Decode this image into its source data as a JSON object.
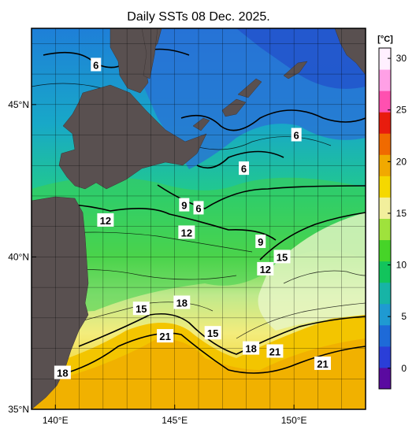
{
  "title": "Daily SSTs 08 Dec. 2025.",
  "map": {
    "lon_range": [
      139,
      153
    ],
    "lat_range": [
      35,
      47.5
    ],
    "lon_ticks": [
      {
        "value": 140,
        "label": "140°E"
      },
      {
        "value": 145,
        "label": "145°E"
      },
      {
        "value": 150,
        "label": "150°E"
      }
    ],
    "lat_ticks": [
      {
        "value": 35,
        "label": "35°N"
      },
      {
        "value": 40,
        "label": "40°N"
      },
      {
        "value": 45,
        "label": "45°N"
      }
    ],
    "land_color": "#595050",
    "contour_labels": [
      {
        "text": "6",
        "lon": 141.7,
        "lat": 46.3
      },
      {
        "text": "6",
        "lon": 150.1,
        "lat": 44.0
      },
      {
        "text": "6",
        "lon": 147.9,
        "lat": 42.9
      },
      {
        "text": "9",
        "lon": 145.4,
        "lat": 41.7
      },
      {
        "text": "6",
        "lon": 146.0,
        "lat": 41.6
      },
      {
        "text": "12",
        "lon": 142.1,
        "lat": 41.2
      },
      {
        "text": "12",
        "lon": 145.5,
        "lat": 40.8
      },
      {
        "text": "9",
        "lon": 148.6,
        "lat": 40.5
      },
      {
        "text": "15",
        "lon": 149.5,
        "lat": 40.0
      },
      {
        "text": "12",
        "lon": 148.8,
        "lat": 39.6
      },
      {
        "text": "18",
        "lon": 145.3,
        "lat": 38.5
      },
      {
        "text": "15",
        "lon": 143.6,
        "lat": 38.3
      },
      {
        "text": "21",
        "lon": 144.6,
        "lat": 37.4
      },
      {
        "text": "15",
        "lon": 146.6,
        "lat": 37.5
      },
      {
        "text": "18",
        "lon": 148.2,
        "lat": 37.0
      },
      {
        "text": "21",
        "lon": 149.2,
        "lat": 36.9
      },
      {
        "text": "21",
        "lon": 151.2,
        "lat": 36.5
      },
      {
        "text": "18",
        "lon": 140.3,
        "lat": 36.2
      }
    ]
  },
  "colorbar": {
    "unit": "[°C]",
    "min": -2,
    "max": 31,
    "ticks": [
      0,
      5,
      10,
      15,
      20,
      25,
      30
    ],
    "colors": [
      "#5a0aa0",
      "#2a3ed8",
      "#1e6ad8",
      "#1f9ad2",
      "#17b4a6",
      "#12c45c",
      "#46d428",
      "#9fe23c",
      "#f2ef9c",
      "#f5d800",
      "#f1a900",
      "#f06a00",
      "#e81c0e",
      "#ff50b0",
      "#ffa0e6",
      "#fff0ff"
    ]
  }
}
